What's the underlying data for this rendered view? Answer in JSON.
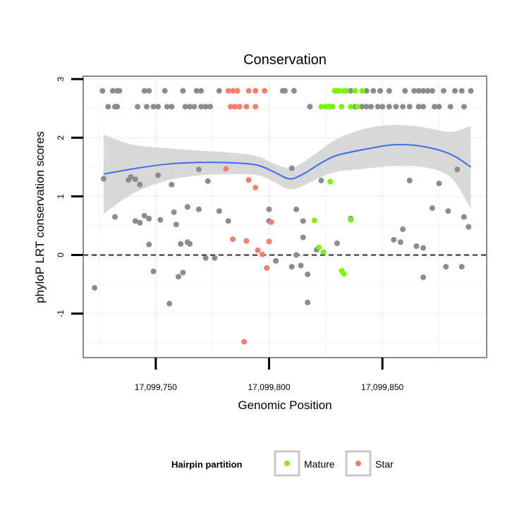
{
  "chart_data": {
    "type": "scatter",
    "title": "Conservation",
    "xlabel": "Genomic Position",
    "ylabel": "phyloP LRT conservation scores",
    "xlim": [
      17099718,
      17099896
    ],
    "ylim": [
      -1.75,
      3.05
    ],
    "x_ticks": [
      17099750,
      17099800,
      17099850
    ],
    "x_tick_labels": [
      "17,099,750",
      "17,099,800",
      "17,099,850"
    ],
    "y_ticks": [
      -1,
      0,
      1,
      2,
      3
    ],
    "y_tick_labels": [
      "-1",
      "0",
      "1",
      "2",
      "3"
    ],
    "grid": true,
    "reference_line": {
      "y": 0,
      "style": "dashed"
    },
    "colors": {
      "Other": "#8c8c8c",
      "Mature": "#7cf20f",
      "Star": "#f28070",
      "smooth": "#3f6de8",
      "ribbon": "#d4d4d4",
      "grid": "#f2f2f2",
      "panel_border": "#8c8c8c",
      "refline": "#000000"
    },
    "legend": {
      "title": "Hairpin partition",
      "position": "bottom",
      "entries": [
        {
          "label": "Mature",
          "group": "Mature"
        },
        {
          "label": "Star",
          "group": "Star"
        }
      ]
    },
    "smooth": {
      "x": [
        17099727,
        17099740,
        17099755,
        17099770,
        17099785,
        17099795,
        17099802,
        17099809,
        17099815,
        17099823,
        17099830,
        17099842,
        17099855,
        17099868,
        17099880,
        17099889
      ],
      "y": [
        1.38,
        1.47,
        1.55,
        1.58,
        1.57,
        1.53,
        1.42,
        1.3,
        1.38,
        1.57,
        1.7,
        1.8,
        1.88,
        1.85,
        1.72,
        1.5
      ],
      "upper": [
        2.05,
        1.88,
        1.82,
        1.78,
        1.74,
        1.68,
        1.56,
        1.48,
        1.58,
        1.8,
        1.98,
        2.15,
        2.22,
        2.18,
        2.1,
        2.2
      ],
      "lower": [
        0.7,
        1.05,
        1.27,
        1.36,
        1.38,
        1.36,
        1.25,
        1.12,
        1.18,
        1.33,
        1.42,
        1.47,
        1.52,
        1.5,
        1.33,
        0.8
      ]
    },
    "points": {
      "Other": {
        "x": [
          17099726.5,
          17099731,
          17099733,
          17099734,
          17099745,
          17099747,
          17099754,
          17099762,
          17099768,
          17099770,
          17099778,
          17099806,
          17099807,
          17099811,
          17099836,
          17099843,
          17099846,
          17099849,
          17099853,
          17099860,
          17099864,
          17099866,
          17099868,
          17099870,
          17099872,
          17099877,
          17099882,
          17099885,
          17099889,
          17099729,
          17099732,
          17099733,
          17099742,
          17099746,
          17099749,
          17099751,
          17099755,
          17099757,
          17099763,
          17099765,
          17099767,
          17099770,
          17099772,
          17099774,
          17099818,
          17099838,
          17099841,
          17099843,
          17099845,
          17099848,
          17099850,
          17099853,
          17099856,
          17099859,
          17099862,
          17099866,
          17099868,
          17099873,
          17099875,
          17099880,
          17099886,
          17099727,
          17099738,
          17099739,
          17099741,
          17099743,
          17099751,
          17099757,
          17099769,
          17099773,
          17099810,
          17099823,
          17099732,
          17099745,
          17099752,
          17099758,
          17099764,
          17099769,
          17099778,
          17099782,
          17099800,
          17099812,
          17099815,
          17099830,
          17099836,
          17099859,
          17099862,
          17099875,
          17099879,
          17099883,
          17099886,
          17099888,
          17099741,
          17099743,
          17099747,
          17099747,
          17099759,
          17099761,
          17099764,
          17099765,
          17099776,
          17099800,
          17099803,
          17099815,
          17099812,
          17099821,
          17099855,
          17099858,
          17099865,
          17099872,
          17099749,
          17099760,
          17099762,
          17099772,
          17099803,
          17099810,
          17099814,
          17099817,
          17099868,
          17099878,
          17099885,
          17099723,
          17099756,
          17099817,
          17099868
        ],
        "y": [
          2.8,
          2.8,
          2.8,
          2.8,
          2.8,
          2.8,
          2.8,
          2.8,
          2.8,
          2.8,
          2.8,
          2.8,
          2.8,
          2.8,
          2.8,
          2.8,
          2.8,
          2.8,
          2.8,
          2.8,
          2.8,
          2.8,
          2.8,
          2.8,
          2.8,
          2.8,
          2.8,
          2.8,
          2.8,
          2.53,
          2.53,
          2.53,
          2.53,
          2.53,
          2.53,
          2.53,
          2.53,
          2.53,
          2.53,
          2.53,
          2.53,
          2.53,
          2.53,
          2.53,
          2.53,
          2.53,
          2.53,
          2.53,
          2.53,
          2.53,
          2.53,
          2.53,
          2.53,
          2.53,
          2.53,
          2.53,
          2.53,
          2.53,
          2.53,
          2.53,
          2.53,
          1.3,
          1.28,
          1.33,
          1.29,
          1.2,
          1.36,
          1.2,
          1.46,
          1.26,
          1.48,
          1.27,
          0.65,
          0.67,
          0.6,
          0.73,
          0.82,
          0.78,
          0.75,
          0.58,
          0.58,
          0.78,
          0.58,
          0.2,
          0.62,
          0.44,
          1.27,
          1.22,
          0.75,
          1.46,
          0.65,
          0.48,
          0.58,
          0.55,
          0.62,
          0.18,
          0.52,
          0.19,
          0.22,
          0.19,
          -0.05,
          0.78,
          -0.1,
          0.3,
          0.0,
          0.09,
          0.26,
          0.22,
          0.15,
          0.8,
          -0.28,
          -0.37,
          -0.3,
          -0.05,
          -0.1,
          -0.2,
          -0.18,
          -0.33,
          -0.38,
          -0.2,
          -0.2,
          -0.56,
          -0.83,
          -0.81,
          0.12
        ]
      },
      "Mature": {
        "x": [
          17099829,
          17099830,
          17099831,
          17099833,
          17099834,
          17099838,
          17099841,
          17099823,
          17099825,
          17099826,
          17099827,
          17099828,
          17099832,
          17099836,
          17099839,
          17099827,
          17099827,
          17099820,
          17099836,
          17099824,
          17099822,
          17099832,
          17099833
        ],
        "y": [
          2.8,
          2.8,
          2.8,
          2.8,
          2.8,
          2.8,
          2.8,
          2.53,
          2.53,
          2.53,
          2.53,
          2.53,
          2.53,
          2.53,
          2.53,
          1.25,
          1.25,
          0.59,
          0.6,
          0.05,
          0.13,
          -0.27,
          -0.32
        ]
      },
      "Star": {
        "x": [
          17099782,
          17099784,
          17099786,
          17099791,
          17099794,
          17099798,
          17099783,
          17099785,
          17099787,
          17099790,
          17099794,
          17099781,
          17099791,
          17099794,
          17099784,
          17099795,
          17099797,
          17099799,
          17099800,
          17099801,
          17099790,
          17099789
        ],
        "y": [
          2.8,
          2.8,
          2.8,
          2.8,
          2.8,
          2.8,
          2.53,
          2.53,
          2.53,
          2.53,
          2.53,
          1.47,
          1.28,
          1.15,
          0.27,
          0.08,
          0.01,
          -0.22,
          0.23,
          0.56,
          0.24,
          -1.48
        ]
      }
    }
  }
}
